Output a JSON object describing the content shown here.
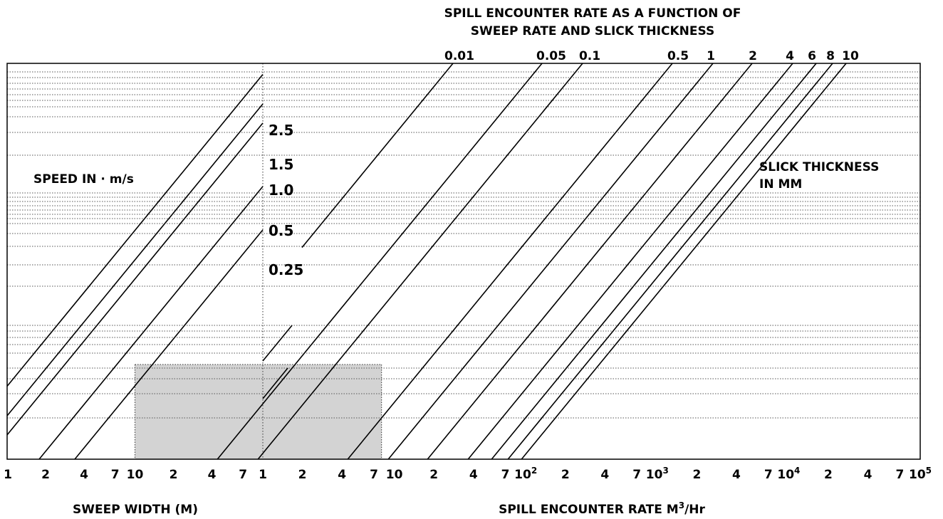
{
  "chart_data": {
    "type": "line",
    "title_line1": "SPILL ENCOUNTER RATE AS A FUNCTION OF",
    "title_line2": "SWEEP RATE AND SLICK THICKNESS",
    "x_scale": "log",
    "x_left": {
      "label": "SWEEP WIDTH (M)",
      "range": [
        1,
        100
      ],
      "tick_labels": [
        "1",
        "2",
        "4",
        "7",
        "10",
        "2",
        "4",
        "7"
      ]
    },
    "x_right": {
      "label_main": "SPILL ENCOUNTER RATE M",
      "label_sup": "3",
      "label_tail": "/Hr",
      "range": [
        1,
        100000
      ],
      "tick_labels": [
        {
          "base": "1",
          "sup": ""
        },
        {
          "base": "2",
          "sup": ""
        },
        {
          "base": "4",
          "sup": ""
        },
        {
          "base": "7",
          "sup": ""
        },
        {
          "base": "10",
          "sup": ""
        },
        {
          "base": "2",
          "sup": ""
        },
        {
          "base": "4",
          "sup": ""
        },
        {
          "base": "7",
          "sup": ""
        },
        {
          "base": "10",
          "sup": "2"
        },
        {
          "base": "2",
          "sup": ""
        },
        {
          "base": "4",
          "sup": ""
        },
        {
          "base": "7",
          "sup": ""
        },
        {
          "base": "10",
          "sup": "3"
        },
        {
          "base": "2",
          "sup": ""
        },
        {
          "base": "4",
          "sup": ""
        },
        {
          "base": "7",
          "sup": ""
        },
        {
          "base": "10",
          "sup": "4"
        },
        {
          "base": "2",
          "sup": ""
        },
        {
          "base": "4",
          "sup": ""
        },
        {
          "base": "7",
          "sup": ""
        },
        {
          "base": "10",
          "sup": "5"
        }
      ]
    },
    "grid": true,
    "speed_legend": {
      "label": "SPEED IN · m/s",
      "series": [
        {
          "name": "2.5",
          "value": 2.5
        },
        {
          "name": "1.5",
          "value": 1.5
        },
        {
          "name": "1.0",
          "value": 1.0
        },
        {
          "name": "0.5",
          "value": 0.5
        },
        {
          "name": "0.25",
          "value": 0.25
        }
      ]
    },
    "thickness_legend": {
      "label_line1": "SLICK THICKNESS",
      "label_line2": "IN MM",
      "series": [
        {
          "name": "0.01",
          "value": 0.01
        },
        {
          "name": "0.05",
          "value": 0.05
        },
        {
          "name": "0.1",
          "value": 0.1
        },
        {
          "name": "0.5",
          "value": 0.5
        },
        {
          "name": "1",
          "value": 1
        },
        {
          "name": "2",
          "value": 2
        },
        {
          "name": "4",
          "value": 4
        },
        {
          "name": "6",
          "value": 6
        },
        {
          "name": "8",
          "value": 8
        },
        {
          "name": "10",
          "value": 10
        }
      ]
    },
    "example_region": {
      "sweep_width_m": [
        10,
        100
      ],
      "encounter_rate_m3_per_hr": [
        1,
        8
      ],
      "color": "#d3d3d3"
    }
  }
}
